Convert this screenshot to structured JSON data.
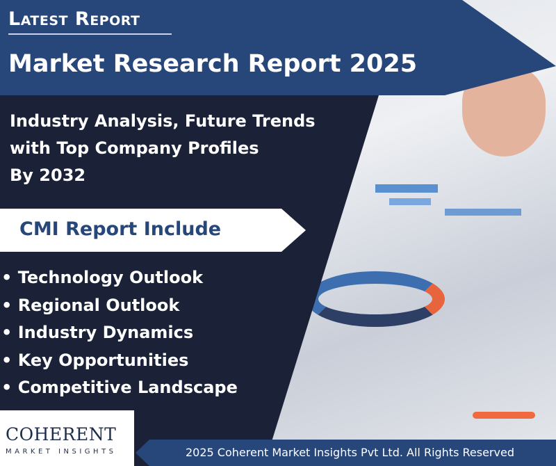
{
  "header": {
    "label": "Latest Report",
    "title": "Market Research Report 2025"
  },
  "subtitle": {
    "lines": [
      "Industry Analysis, Future Trends",
      "with Top Company Profiles",
      "By  2032"
    ]
  },
  "includes": {
    "heading": "CMI Report Include",
    "items": [
      "Technology Outlook",
      "Regional Outlook",
      "Industry Dynamics",
      "Key Opportunities",
      "Competitive Landscape"
    ]
  },
  "logo": {
    "name": "COHERENT",
    "tagline": "MARKET INSIGHTS"
  },
  "footer": {
    "copyright": "2025 Coherent Market Insights Pvt Ltd. All Rights Reserved"
  },
  "colors": {
    "banner": "#27467a",
    "background": "#1b2238",
    "accent": "#ffffff"
  }
}
